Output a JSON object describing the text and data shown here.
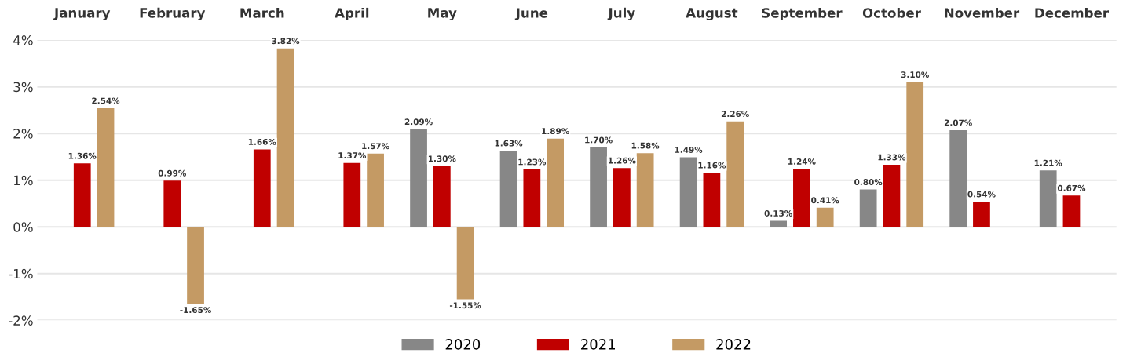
{
  "chart_data": {
    "type": "bar",
    "categories": [
      "January",
      "February",
      "March",
      "April",
      "May",
      "June",
      "July",
      "August",
      "September",
      "October",
      "November",
      "December"
    ],
    "series": [
      {
        "name": "2020",
        "color": "#878787",
        "values": [
          null,
          null,
          null,
          null,
          2.09,
          1.63,
          1.7,
          1.49,
          0.13,
          0.8,
          2.07,
          1.21
        ],
        "value_labels": [
          null,
          null,
          null,
          null,
          "2.09%",
          "1.63%",
          "1.70%",
          "1.49%",
          "0.13%",
          "0.80%",
          "2.07%",
          "1.21%"
        ]
      },
      {
        "name": "2021",
        "color": "#c00000",
        "values": [
          1.36,
          0.99,
          1.66,
          1.37,
          1.3,
          1.23,
          1.26,
          1.16,
          1.24,
          1.33,
          0.54,
          0.67
        ],
        "value_labels": [
          "1.36%",
          "0.99%",
          "1.66%",
          "1.37%",
          "1.30%",
          "1.23%",
          "1.26%",
          "1.16%",
          "1.24%",
          "1.33%",
          "0.54%",
          "0.67%"
        ]
      },
      {
        "name": "2022",
        "color": "#c49a64",
        "values": [
          2.54,
          -1.65,
          3.82,
          1.57,
          -1.55,
          1.89,
          1.58,
          2.26,
          0.41,
          3.1,
          null,
          null
        ],
        "value_labels": [
          "2.54%",
          "-1.65%",
          "3.82%",
          "1.57%",
          "-1.55%",
          "1.89%",
          "1.58%",
          "2.26%",
          "0.41%",
          "3.10%",
          null,
          null
        ]
      }
    ],
    "ylim": [
      -2,
      4
    ],
    "yticks": [
      {
        "value": -2,
        "label": "-2%"
      },
      {
        "value": -1,
        "label": "-1%"
      },
      {
        "value": 0,
        "label": "0%"
      },
      {
        "value": 1,
        "label": "1%"
      },
      {
        "value": 2,
        "label": "2%"
      },
      {
        "value": 3,
        "label": "3%"
      },
      {
        "value": 4,
        "label": "4%"
      }
    ],
    "grid": "y",
    "legend": "bottom"
  }
}
